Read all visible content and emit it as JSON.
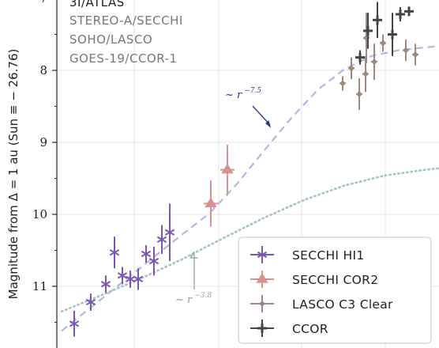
{
  "chart_data": {
    "type": "scatter",
    "ylabel": "Magnitude from Δ = 1 au (Sun ≡ − 26.76)",
    "y_ticks": [
      "7",
      "8",
      "9",
      "10",
      "11"
    ],
    "y_range_visible": [
      6.95,
      11.7
    ],
    "y_inverted": true,
    "grid": true,
    "sources_title": "3I/ATLAS",
    "sources": [
      "STEREO-A/SECCHI",
      "SOHO/LASCO",
      "GOES-19/CCOR-1"
    ],
    "colors": {
      "secchi_hi1": "#7b57b0",
      "secchi_cor2": "#d4938f",
      "lasco": "#9c8a80",
      "ccor": "#444448",
      "fit_7_5": "#b3b6e2",
      "fit_3_8": "#a4c4c0",
      "arrow_7_5": "#2c3a8a",
      "arrow_3_8": "#8aa3a8"
    },
    "legend": {
      "placement": "bottom-right",
      "entries": [
        {
          "key": "secchi_hi1",
          "label": "SECCHI HI1",
          "marker": "asterisk"
        },
        {
          "key": "secchi_cor2",
          "label": "SECCHI COR2",
          "marker": "triangle"
        },
        {
          "key": "lasco",
          "label": "LASCO C3 Clear",
          "marker": "diamond"
        },
        {
          "key": "ccor",
          "label": "CCOR",
          "marker": "plus"
        }
      ]
    },
    "annotations": [
      {
        "key": "fit_7_5",
        "prefix": "~ r",
        "exponent": "−7.5"
      },
      {
        "key": "fit_3_8",
        "prefix": "~ r",
        "exponent": "−3.8"
      }
    ],
    "series": [
      {
        "key": "secchi_hi1",
        "name": "SECCHI HI1",
        "points": [
          {
            "x": 1,
            "y": 11.52,
            "err": 0.18
          },
          {
            "x": 2,
            "y": 11.22,
            "err": 0.12
          },
          {
            "x": 3,
            "y": 10.97,
            "err": 0.12
          },
          {
            "x": 4,
            "y": 10.53,
            "err": 0.22
          },
          {
            "x": 5,
            "y": 10.85,
            "err": 0.12
          },
          {
            "x": 6,
            "y": 10.9,
            "err": 0.12
          },
          {
            "x": 7,
            "y": 10.9,
            "err": 0.15
          },
          {
            "x": 8,
            "y": 10.55,
            "err": 0.12
          },
          {
            "x": 9,
            "y": 10.65,
            "err": 0.2
          },
          {
            "x": 10,
            "y": 10.35,
            "err": 0.2
          },
          {
            "x": 11,
            "y": 10.25,
            "err": 0.4
          }
        ]
      },
      {
        "key": "secchi_cor2",
        "name": "SECCHI COR2",
        "points": [
          {
            "x": 12,
            "y": 9.85,
            "err": 0.32
          },
          {
            "x": 13,
            "y": 9.38,
            "err": 0.35
          }
        ]
      },
      {
        "key": "lasco",
        "name": "LASCO C3 Clear",
        "points": [
          {
            "x": 14,
            "y": 8.18,
            "err": 0.1
          },
          {
            "x": 15,
            "y": 7.97,
            "err": 0.15
          },
          {
            "x": 16,
            "y": 8.33,
            "err": 0.22
          },
          {
            "x": 17,
            "y": 8.05,
            "err": 0.25
          },
          {
            "x": 18,
            "y": 7.55,
            "err": 0.35
          },
          {
            "x": 19,
            "y": 7.88,
            "err": 0.25
          },
          {
            "x": 20,
            "y": 7.62,
            "err": 0.12
          },
          {
            "x": 21,
            "y": 7.72,
            "err": 0.15
          },
          {
            "x": 22,
            "y": 7.78,
            "err": 0.15
          }
        ]
      },
      {
        "key": "ccor",
        "name": "CCOR",
        "points": [
          {
            "x": 23,
            "y": 7.82,
            "err": 0.1
          },
          {
            "x": 24,
            "y": 7.45,
            "err": 0.25
          },
          {
            "x": 25,
            "y": 7.3,
            "err": 0.25
          },
          {
            "x": 26,
            "y": 7.5,
            "err": 0.3
          },
          {
            "x": 27,
            "y": 7.22,
            "err": 0.1
          },
          {
            "x": 28,
            "y": 7.18,
            "err": 0.06
          }
        ]
      }
    ],
    "fit_curves": [
      {
        "key": "fit_7_5",
        "style": "dashed",
        "points": [
          {
            "x": 0,
            "y": 11.62
          },
          {
            "x": 4,
            "y": 11.02
          },
          {
            "x": 8,
            "y": 10.42
          },
          {
            "x": 11,
            "y": 9.98
          },
          {
            "x": 13,
            "y": 9.58
          },
          {
            "x": 15,
            "y": 9.12
          },
          {
            "x": 17,
            "y": 8.67
          },
          {
            "x": 19,
            "y": 8.27
          },
          {
            "x": 21,
            "y": 7.98
          },
          {
            "x": 23,
            "y": 7.8
          },
          {
            "x": 25,
            "y": 7.72
          },
          {
            "x": 28,
            "y": 7.66
          }
        ]
      },
      {
        "key": "fit_3_8",
        "style": "dotted",
        "points": [
          {
            "x": 0,
            "y": 11.35
          },
          {
            "x": 3,
            "y": 11.12
          },
          {
            "x": 6,
            "y": 10.88
          },
          {
            "x": 9,
            "y": 10.62
          },
          {
            "x": 12,
            "y": 10.33
          },
          {
            "x": 15,
            "y": 10.05
          },
          {
            "x": 18,
            "y": 9.8
          },
          {
            "x": 21,
            "y": 9.6
          },
          {
            "x": 24,
            "y": 9.46
          },
          {
            "x": 27,
            "y": 9.38
          },
          {
            "x": 28,
            "y": 9.36
          }
        ]
      }
    ]
  }
}
